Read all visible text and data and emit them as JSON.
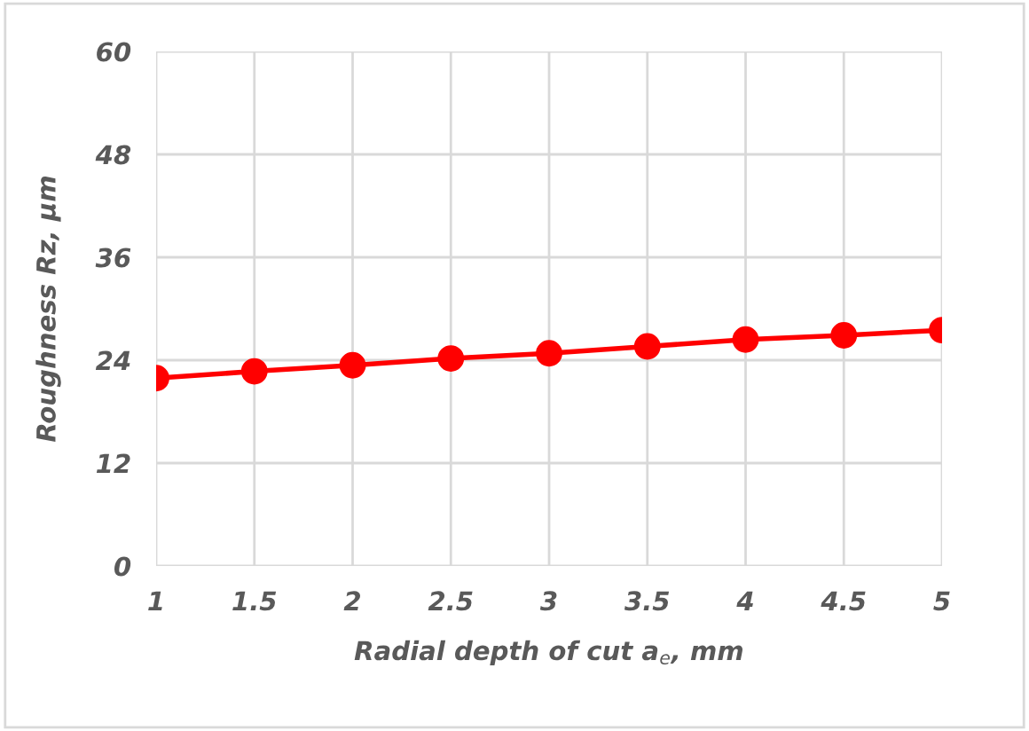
{
  "chart_data": {
    "type": "line",
    "xlabel": "Radial depth of cut a$_{e}$, mm",
    "ylabel": "Roughness Rz, μm",
    "categories": [
      "1",
      "1.5",
      "2",
      "2.5",
      "3",
      "3.5",
      "4",
      "4.5",
      "5"
    ],
    "series": [
      {
        "color": "#ff0000",
        "values": [
          21.9,
          22.7,
          23.4,
          24.2,
          24.8,
          25.6,
          26.4,
          26.9,
          27.5
        ]
      }
    ],
    "ylim": [
      0,
      60
    ],
    "yticks": [
      0,
      12,
      24,
      36,
      48,
      60
    ],
    "grid": true,
    "marker": "circle",
    "line_style": "solid"
  }
}
